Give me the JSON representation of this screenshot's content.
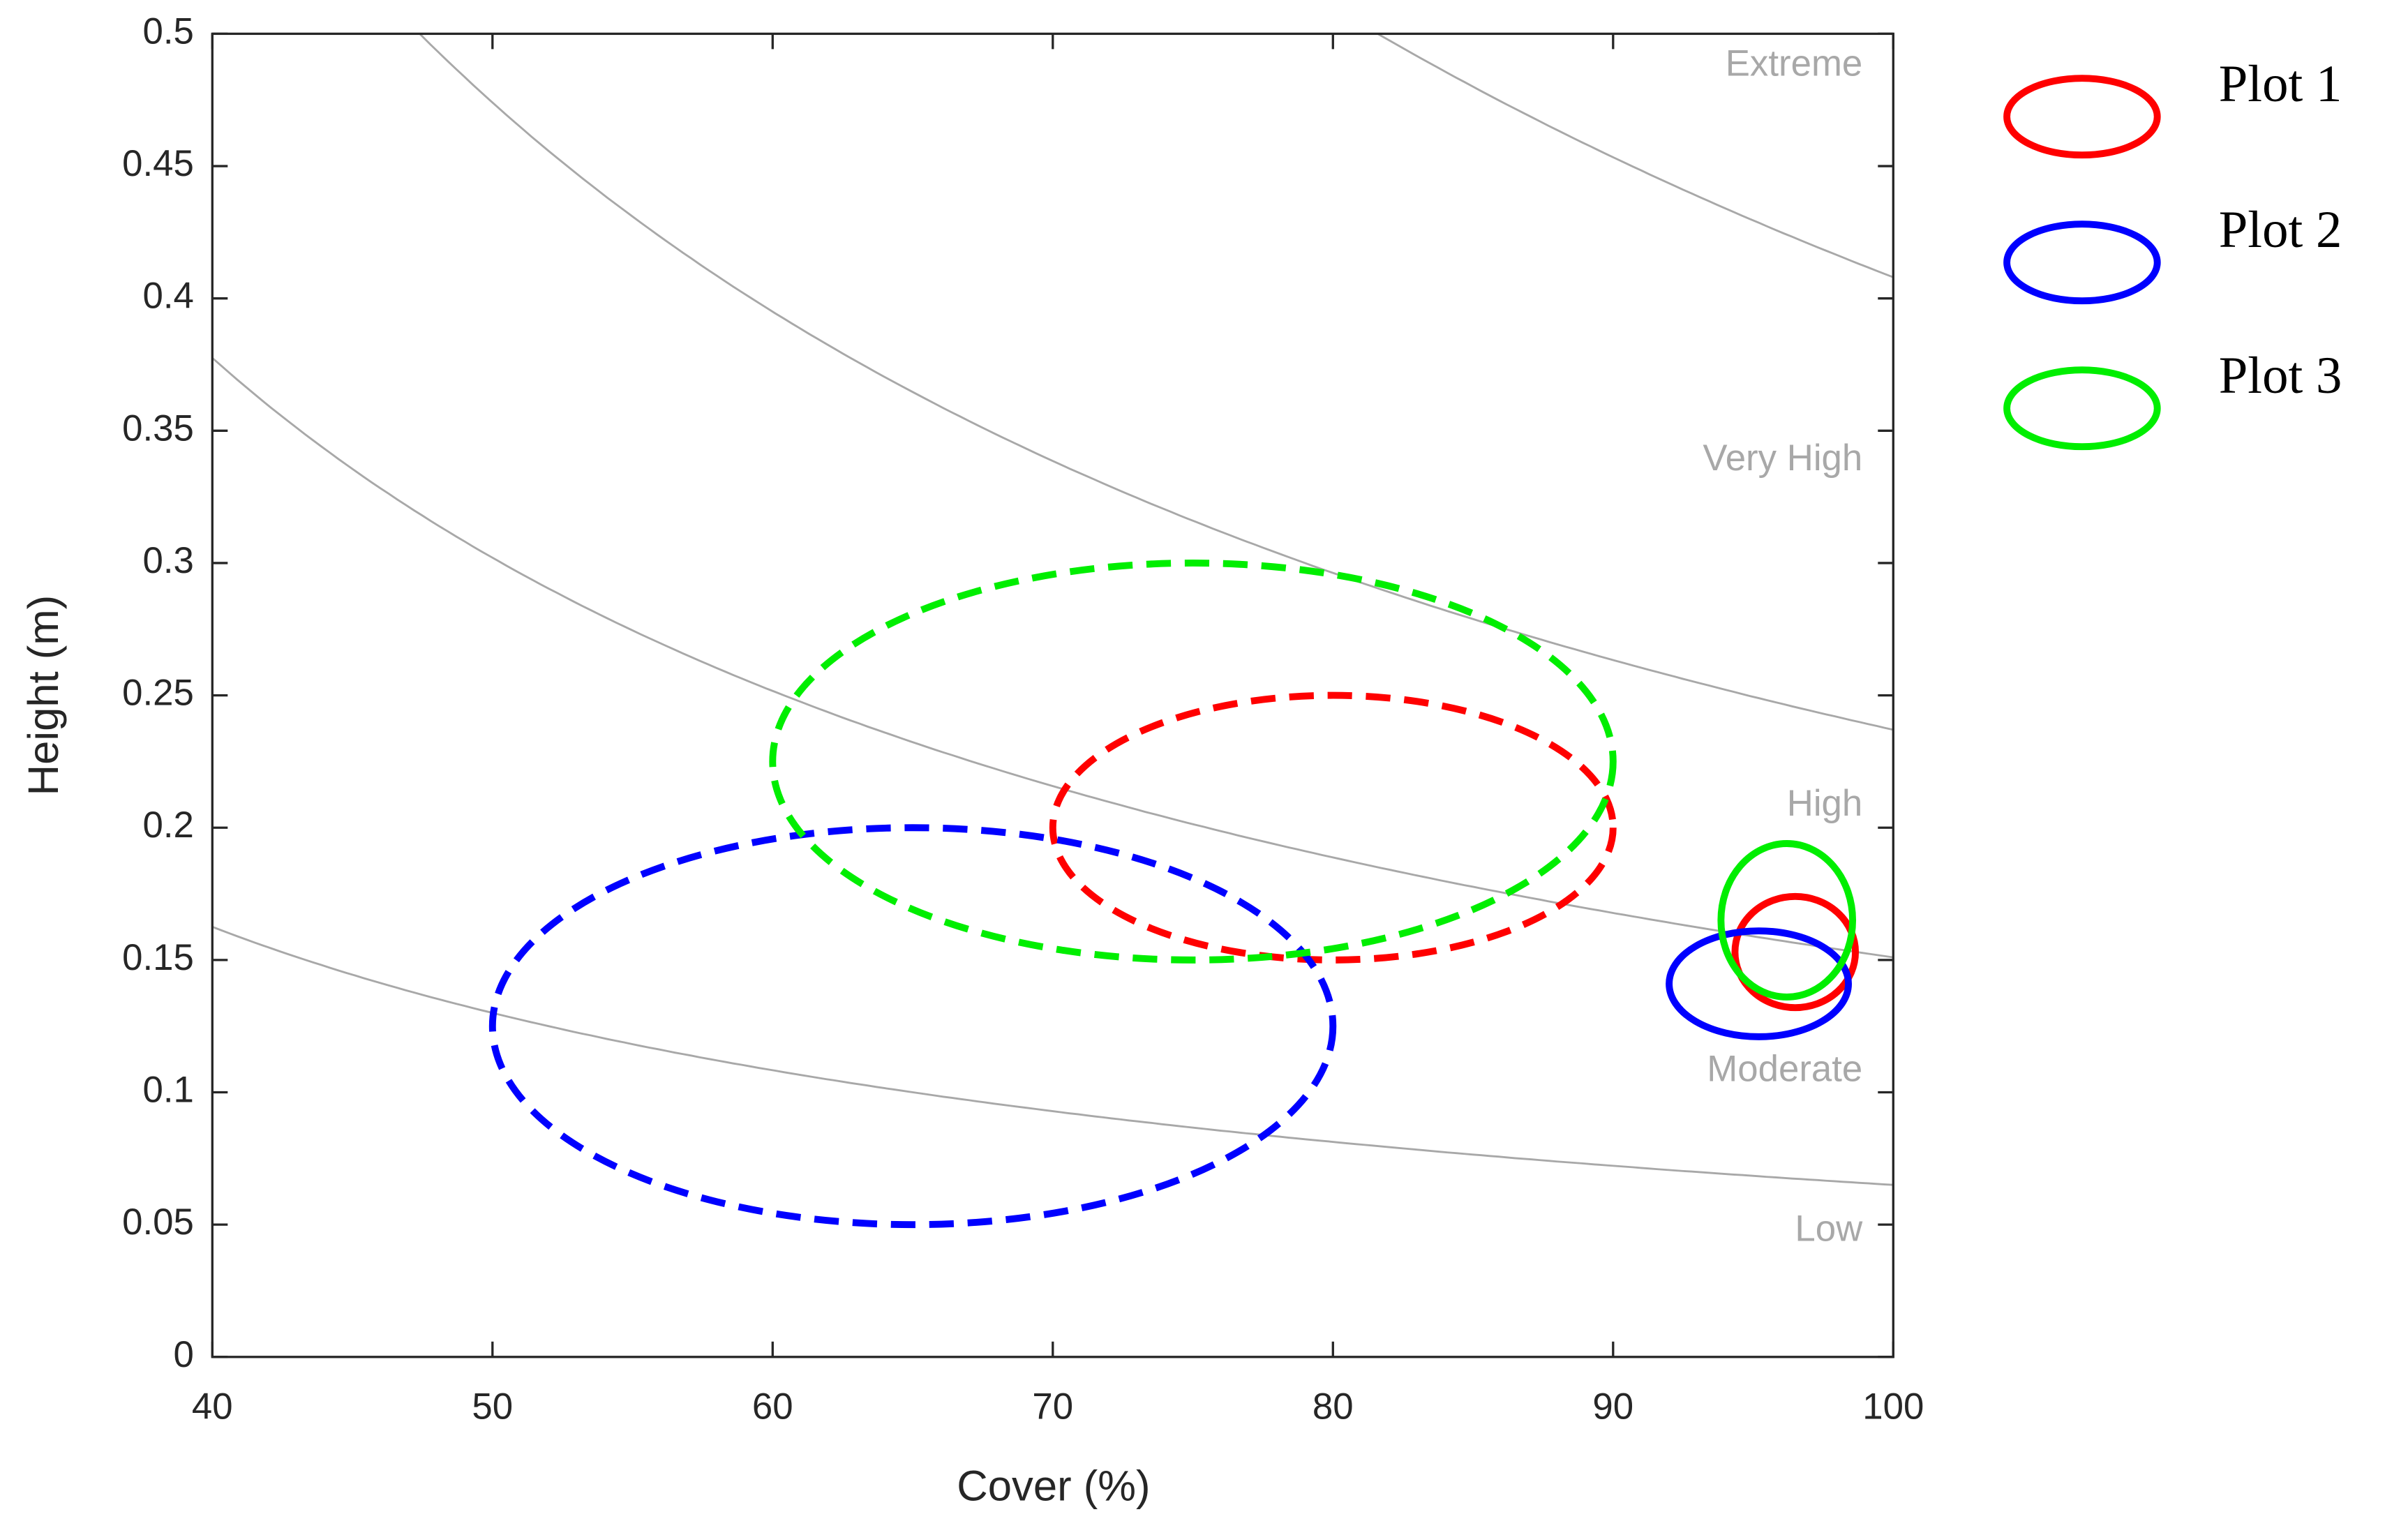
{
  "chart_data": {
    "type": "ellipse",
    "xlabel": "Cover (%)",
    "ylabel": "Height (m)",
    "xlim": [
      40,
      100
    ],
    "ylim": [
      0,
      0.5
    ],
    "xticks": [
      40,
      50,
      60,
      70,
      80,
      90,
      100
    ],
    "yticks": [
      0,
      0.05,
      0.1,
      0.15,
      0.2,
      0.25,
      0.3,
      0.35,
      0.4,
      0.45,
      0.5
    ],
    "zones": [
      {
        "label": "Extreme",
        "k": 40.8
      },
      {
        "label": "Very High",
        "k": 23.7
      },
      {
        "label": "High",
        "k": 15.1
      },
      {
        "label": "Moderate",
        "k": 6.5
      },
      {
        "label": "Low"
      }
    ],
    "zone_color": "#a8a8a8",
    "series": [
      {
        "name": "Plot 1",
        "color": "#ff0000",
        "ellipses": [
          {
            "cx": 80,
            "rx": 10,
            "cy": 0.2,
            "ry": 0.05,
            "dashed": true
          },
          {
            "cx": 96.5,
            "rx": 2.15,
            "cy": 0.153,
            "ry": 0.021,
            "dashed": false
          }
        ]
      },
      {
        "name": "Plot 2",
        "color": "#0000ff",
        "ellipses": [
          {
            "cx": 65,
            "rx": 15,
            "cy": 0.125,
            "ry": 0.075,
            "dashed": true
          },
          {
            "cx": 95.2,
            "rx": 3.2,
            "cy": 0.141,
            "ry": 0.02,
            "dashed": false
          }
        ]
      },
      {
        "name": "Plot 3",
        "color": "#00ee00",
        "ellipses": [
          {
            "cx": 75,
            "rx": 15,
            "cy": 0.225,
            "ry": 0.075,
            "dashed": true
          },
          {
            "cx": 96.2,
            "rx": 2.35,
            "cy": 0.165,
            "ry": 0.029,
            "dashed": false
          }
        ]
      }
    ]
  }
}
